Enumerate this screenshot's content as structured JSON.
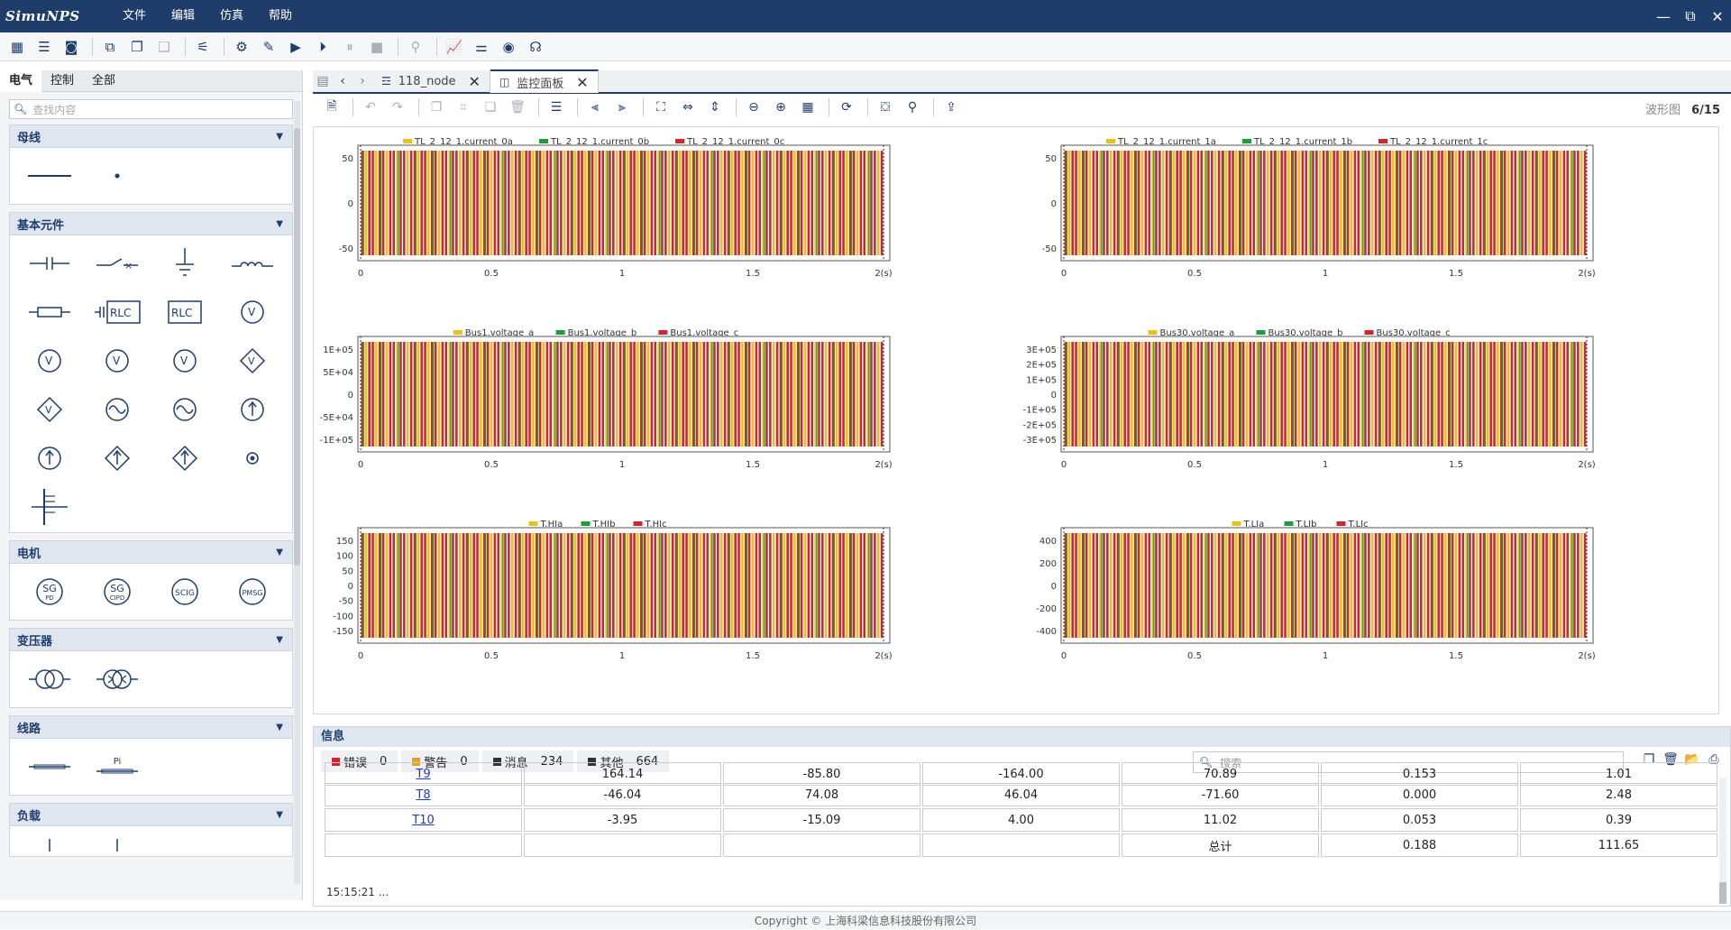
{
  "app": {
    "logo_text": "SimuNPS",
    "menu": [
      "文件",
      "编辑",
      "仿真",
      "帮助"
    ],
    "window_controls": [
      "—",
      "⧉",
      "✕"
    ]
  },
  "toolbar": {
    "icons": [
      "module-list-icon",
      "list-icon",
      "save-disk-icon",
      "new-project-icon",
      "copy-project-icon",
      "paste-project-icon",
      "settings-tree-icon",
      "component-settings-icon",
      "edit-model-icon",
      "run-icon",
      "step-run-icon",
      "pause-icon",
      "stop-icon",
      "connect-icon",
      "chart-icon",
      "parameter-icon",
      "monitor-icon",
      "headset-icon"
    ]
  },
  "left_panel": {
    "tabs": [
      "电气",
      "控制",
      "全部"
    ],
    "active_tab": "电气",
    "search_placeholder": "查找内容",
    "categories": [
      {
        "name": "母线",
        "items": [
          "bus-line",
          "bus-node"
        ]
      },
      {
        "name": "基本元件",
        "items": [
          "capacitor",
          "breaker",
          "ground",
          "inductor",
          "resistor",
          "rlc-series",
          "rlc-parallel",
          "voltage-source-ac",
          "voltage-source-1",
          "voltage-source-2",
          "voltage-source-3",
          "controlled-voltage",
          "controlled-voltage-2",
          "sine-source",
          "sine-source-2",
          "current-source",
          "current-source-2",
          "controlled-current",
          "controlled-current-2",
          "measure-point",
          "multi-line"
        ]
      },
      {
        "name": "电机",
        "items": [
          "SG",
          "SG",
          "SCIG",
          "PMSG"
        ],
        "sub": [
          "PD",
          "CIPD",
          "",
          ""
        ]
      },
      {
        "name": "变压器",
        "items": [
          "transformer-2w",
          "transformer-3w"
        ]
      },
      {
        "name": "线路",
        "items": [
          "line-simple",
          "line-pi"
        ],
        "pi_label": "Pi"
      },
      {
        "name": "负载",
        "items": [
          "load-1",
          "load-2"
        ]
      }
    ],
    "rlc_label": "RLC",
    "v_label": "V"
  },
  "doc_tabs": [
    {
      "label": "118_node",
      "active": false
    },
    {
      "label": "监控面板",
      "active": true
    }
  ],
  "panel_toolbar": {
    "waveform_label": "波形图",
    "waveform_page": "6/15"
  },
  "charts": [
    {
      "legend": [
        "TL_2_12_1.current_0a",
        "TL_2_12_1.current_0b",
        "TL_2_12_1.current_0c"
      ],
      "yticks": [
        "50",
        "0",
        "-50"
      ],
      "xticks": [
        "0",
        "0.5",
        "1",
        "1.5",
        "2(s)"
      ]
    },
    {
      "legend": [
        "TL_2_12_1.current_1a",
        "TL_2_12_1.current_1b",
        "TL_2_12_1.current_1c"
      ],
      "yticks": [
        "50",
        "0",
        "-50"
      ],
      "xticks": [
        "0",
        "0.5",
        "1",
        "1.5",
        "2(s)"
      ]
    },
    {
      "legend": [
        "Bus1.voltage_a",
        "Bus1.voltage_b",
        "Bus1.voltage_c"
      ],
      "yticks": [
        "1E+05",
        "5E+04",
        "0",
        "-5E+04",
        "-1E+05"
      ],
      "xticks": [
        "0",
        "0.5",
        "1",
        "1.5",
        "2(s)"
      ]
    },
    {
      "legend": [
        "Bus30.voltage_a",
        "Bus30.voltage_b",
        "Bus30.voltage_c"
      ],
      "yticks": [
        "3E+05",
        "2E+05",
        "1E+05",
        "0",
        "-1E+05",
        "-2E+05",
        "-3E+05"
      ],
      "xticks": [
        "0",
        "0.5",
        "1",
        "1.5",
        "2(s)"
      ]
    },
    {
      "legend": [
        "T.HIa",
        "T.HIb",
        "T.HIc"
      ],
      "yticks": [
        "150",
        "100",
        "50",
        "0",
        "-50",
        "-100",
        "-150"
      ],
      "xticks": [
        "0",
        "0.5",
        "1",
        "1.5",
        "2(s)"
      ]
    },
    {
      "legend": [
        "T.LIa",
        "T.LIb",
        "T.LIc"
      ],
      "yticks": [
        "400",
        "200",
        "0",
        "-200",
        "-400"
      ],
      "xticks": [
        "0",
        "0.5",
        "1",
        "1.5",
        "2(s)"
      ]
    }
  ],
  "series_colors": [
    "#e8c21a",
    "#1e9c3a",
    "#d1262c"
  ],
  "info_panel": {
    "title": "信息",
    "tabs": [
      {
        "label": "错误",
        "count": "0",
        "color": "#d1262c"
      },
      {
        "label": "警告",
        "count": "0",
        "color": "#e8a21a"
      },
      {
        "label": "消息",
        "count": "234",
        "color": "#333333"
      },
      {
        "label": "其他",
        "count": "664",
        "color": "#333333"
      }
    ],
    "search_placeholder": "搜索",
    "partial_row": [
      "T9",
      "164.14",
      "-85.80",
      "-164.00",
      "70.89",
      "0.153",
      "1.01"
    ],
    "rows": [
      [
        "T8",
        "-46.04",
        "74.08",
        "46.04",
        "-71.60",
        "0.000",
        "2.48"
      ],
      [
        "T10",
        "-3.95",
        "-15.09",
        "4.00",
        "11.02",
        "0.053",
        "0.39"
      ],
      [
        "",
        "",
        "",
        "",
        "总计",
        "0.188",
        "111.65"
      ]
    ],
    "log_line": "15:15:21 ..."
  },
  "footer": "Copyright © 上海科梁信息科技股份有限公司"
}
